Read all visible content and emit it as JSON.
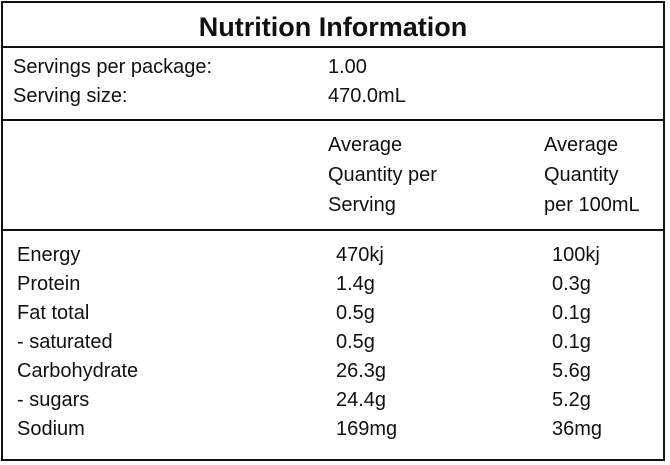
{
  "title": "Nutrition Information",
  "servings": {
    "per_package_label": "Servings per package:",
    "per_package_value": "1.00",
    "size_label": "Serving size:",
    "size_value": "470.0mL"
  },
  "headers": {
    "per_serving": "Average\nQuantity per\nServing",
    "per_100ml": "Average\nQuantity\nper 100mL"
  },
  "rows": [
    {
      "name": "Energy",
      "per_serving": "470kj",
      "per_100ml": "100kj"
    },
    {
      "name": "Protein",
      "per_serving": "1.4g",
      "per_100ml": "0.3g"
    },
    {
      "name": "Fat total",
      "per_serving": "0.5g",
      "per_100ml": "0.1g"
    },
    {
      "name": "- saturated",
      "per_serving": "0.5g",
      "per_100ml": "0.1g"
    },
    {
      "name": "Carbohydrate",
      "per_serving": "26.3g",
      "per_100ml": "5.6g"
    },
    {
      "name": "- sugars",
      "per_serving": "24.4g",
      "per_100ml": "5.2g"
    },
    {
      "name": "Sodium",
      "per_serving": "169mg",
      "per_100ml": "36mg"
    }
  ]
}
